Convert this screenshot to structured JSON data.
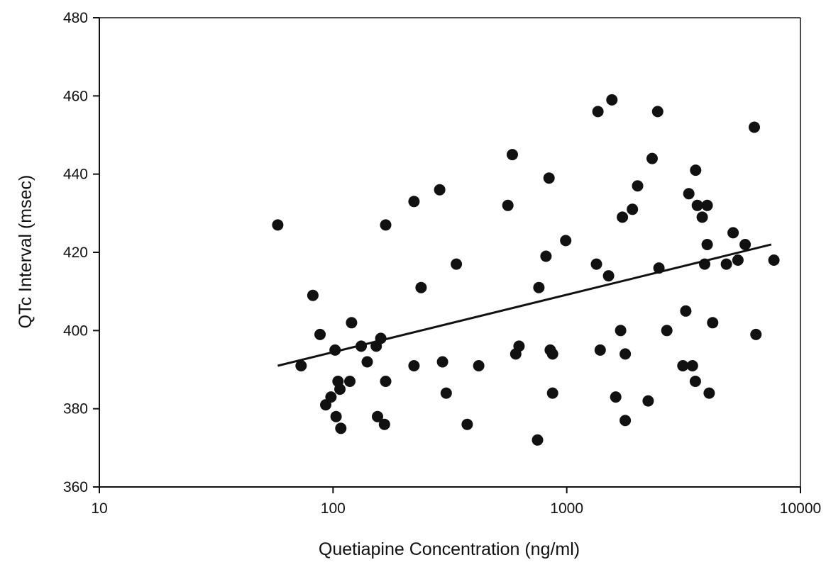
{
  "chart_data": {
    "type": "scatter",
    "title": "",
    "xlabel": "Quetiapine Concentration (ng/ml)",
    "ylabel": "QTc Interval (msec)",
    "x_scale": "log",
    "xlim": [
      10,
      10000
    ],
    "ylim": [
      360,
      480
    ],
    "x_ticks": [
      10,
      100,
      1000,
      10000
    ],
    "x_tick_labels": [
      "10",
      "100",
      "1000",
      "10000"
    ],
    "y_ticks": [
      360,
      380,
      400,
      420,
      440,
      460,
      480
    ],
    "y_tick_labels": [
      "360",
      "380",
      "400",
      "420",
      "440",
      "460",
      "480"
    ],
    "grid": false,
    "legend": "none",
    "colors": {
      "points": "#111111",
      "axes": "#111111",
      "line": "#111111"
    },
    "series": [
      {
        "points": [
          [
            58,
            427
          ],
          [
            73,
            391
          ],
          [
            82,
            409
          ],
          [
            88,
            399
          ],
          [
            93,
            381
          ],
          [
            98,
            383
          ],
          [
            102,
            395
          ],
          [
            103,
            378
          ],
          [
            105,
            387
          ],
          [
            107,
            385
          ],
          [
            108,
            375
          ],
          [
            118,
            387
          ],
          [
            120,
            402
          ],
          [
            132,
            396
          ],
          [
            140,
            392
          ],
          [
            153,
            396
          ],
          [
            155,
            378
          ],
          [
            160,
            398
          ],
          [
            166,
            376
          ],
          [
            168,
            387
          ],
          [
            168,
            427
          ],
          [
            222,
            433
          ],
          [
            222,
            391
          ],
          [
            238,
            411
          ],
          [
            286,
            436
          ],
          [
            294,
            392
          ],
          [
            305,
            384
          ],
          [
            337,
            417
          ],
          [
            375,
            376
          ],
          [
            420,
            391
          ],
          [
            560,
            432
          ],
          [
            585,
            445
          ],
          [
            605,
            394
          ],
          [
            625,
            396
          ],
          [
            750,
            372
          ],
          [
            760,
            411
          ],
          [
            815,
            419
          ],
          [
            840,
            439
          ],
          [
            850,
            395
          ],
          [
            870,
            394
          ],
          [
            870,
            384
          ],
          [
            990,
            423
          ],
          [
            1340,
            417
          ],
          [
            1360,
            456
          ],
          [
            1390,
            395
          ],
          [
            1510,
            414
          ],
          [
            1560,
            459
          ],
          [
            1620,
            383
          ],
          [
            1700,
            400
          ],
          [
            1730,
            429
          ],
          [
            1780,
            377
          ],
          [
            1780,
            394
          ],
          [
            1910,
            431
          ],
          [
            2010,
            437
          ],
          [
            2230,
            382
          ],
          [
            2320,
            444
          ],
          [
            2450,
            456
          ],
          [
            2480,
            416
          ],
          [
            2680,
            400
          ],
          [
            3140,
            391
          ],
          [
            3230,
            405
          ],
          [
            3330,
            435
          ],
          [
            3450,
            391
          ],
          [
            3550,
            387
          ],
          [
            3560,
            441
          ],
          [
            3620,
            432
          ],
          [
            3800,
            429
          ],
          [
            3890,
            417
          ],
          [
            3990,
            422
          ],
          [
            3990,
            432
          ],
          [
            4070,
            384
          ],
          [
            4210,
            402
          ],
          [
            4820,
            417
          ],
          [
            5150,
            425
          ],
          [
            5400,
            418
          ],
          [
            5800,
            422
          ],
          [
            6350,
            452
          ],
          [
            6450,
            399
          ],
          [
            7700,
            418
          ]
        ]
      }
    ],
    "trend_line": {
      "x": [
        58,
        7500
      ],
      "y": [
        391,
        422
      ]
    }
  }
}
